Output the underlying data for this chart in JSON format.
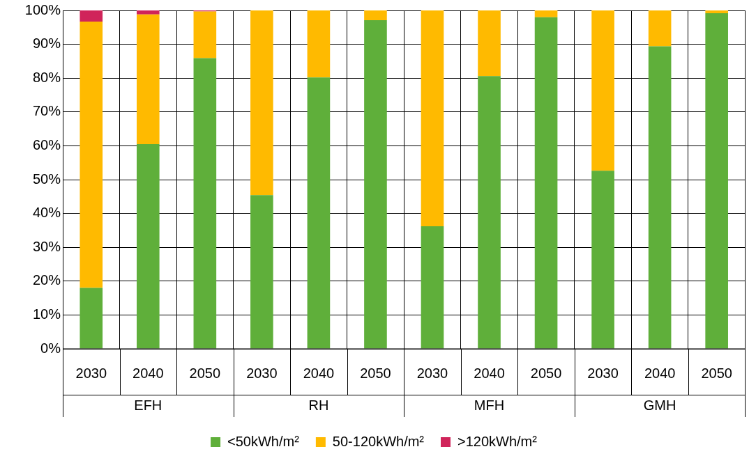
{
  "chart_data": {
    "type": "bar",
    "stacked": true,
    "categories": [
      "2030",
      "2040",
      "2050",
      "2030",
      "2040",
      "2050",
      "2030",
      "2040",
      "2050",
      "2030",
      "2040",
      "2050"
    ],
    "annotations": [
      "EFH",
      "RH",
      "MFH",
      "GMH"
    ],
    "series": [
      {
        "name": "<50kWh/m²",
        "color": "#5faf3a",
        "values": [
          18,
          60.5,
          85.9,
          45.4,
          80.2,
          97.1,
          36.2,
          80.6,
          98,
          52.6,
          89.4,
          99.2
        ]
      },
      {
        "name": "50-120kWh/m²",
        "color": "#ffba00",
        "values": [
          78.7,
          38.3,
          13.8,
          54.6,
          19.8,
          2.9,
          63.8,
          19.4,
          2,
          47.4,
          10.6,
          0.8
        ]
      },
      {
        "name": ">120kWh/m²",
        "color": "#d0245a",
        "values": [
          3.3,
          1.2,
          0.3,
          0,
          0,
          0,
          0,
          0,
          0,
          0,
          0,
          0
        ]
      }
    ],
    "ylim": [
      0,
      100
    ],
    "yticks": [
      {
        "value": 0,
        "label": "0%"
      },
      {
        "value": 10,
        "label": "10%"
      },
      {
        "value": 20,
        "label": "20%"
      },
      {
        "value": 30,
        "label": "30%"
      },
      {
        "value": 40,
        "label": "40%"
      },
      {
        "value": 50,
        "label": "50%"
      },
      {
        "value": 60,
        "label": "60%"
      },
      {
        "value": 70,
        "label": "70%"
      },
      {
        "value": 80,
        "label": "80%"
      },
      {
        "value": 90,
        "label": "90%"
      },
      {
        "value": 100,
        "label": "100%"
      }
    ],
    "grid": true,
    "legend": "bottom"
  }
}
